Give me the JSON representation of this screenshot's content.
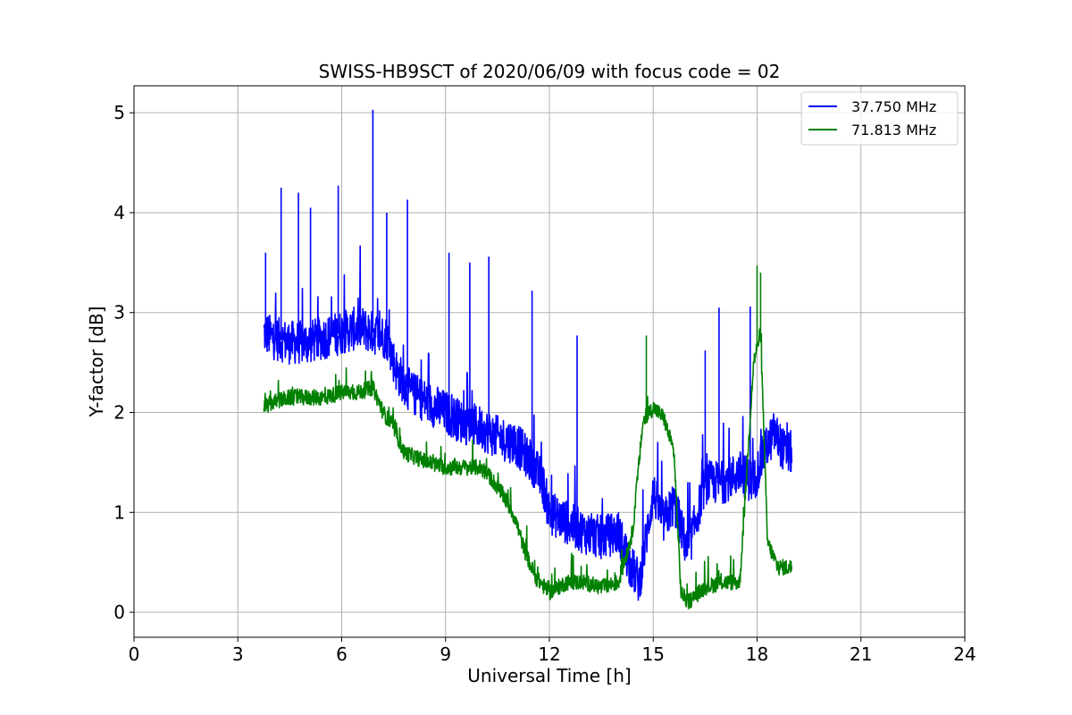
{
  "chart_data": {
    "type": "line",
    "title": "SWISS-HB9SCT of 2020/06/09 with focus code = 02",
    "xlabel": "Universal Time [h]",
    "ylabel": "Y-factor [dB]",
    "xlim": [
      0,
      24
    ],
    "ylim": [
      -0.25,
      5.27
    ],
    "xticks": [
      0,
      3,
      6,
      9,
      12,
      15,
      18,
      21,
      24
    ],
    "yticks": [
      0,
      1,
      2,
      3,
      4,
      5
    ],
    "grid": true,
    "legend_position": "top-right",
    "series": [
      {
        "name": "37.750 MHz",
        "color": "#0000ff",
        "x": [
          3.75,
          4.0,
          4.5,
          5.0,
          5.5,
          6.0,
          6.5,
          6.9,
          7.3,
          7.6,
          8.0,
          8.5,
          9.0,
          9.5,
          10.0,
          10.5,
          11.0,
          11.5,
          11.8,
          12.0,
          12.5,
          13.0,
          13.5,
          14.0,
          14.3,
          14.6,
          15.0,
          15.3,
          15.6,
          16.0,
          16.5,
          17.0,
          17.5,
          17.9,
          18.2,
          18.5,
          18.8,
          19.0
        ],
        "y": [
          2.8,
          2.75,
          2.7,
          2.7,
          2.75,
          2.8,
          2.85,
          2.8,
          2.75,
          2.4,
          2.2,
          2.1,
          2.0,
          1.9,
          1.85,
          1.75,
          1.7,
          1.5,
          1.3,
          1.0,
          0.9,
          0.8,
          0.75,
          0.8,
          0.5,
          0.3,
          1.2,
          0.9,
          1.1,
          0.6,
          1.3,
          1.3,
          1.4,
          1.3,
          1.6,
          1.8,
          1.6,
          1.6
        ],
        "peaks": [
          {
            "x": 3.8,
            "y": 3.6
          },
          {
            "x": 4.25,
            "y": 4.25
          },
          {
            "x": 4.75,
            "y": 4.2
          },
          {
            "x": 5.1,
            "y": 4.05
          },
          {
            "x": 5.9,
            "y": 4.27
          },
          {
            "x": 6.9,
            "y": 5.03
          },
          {
            "x": 7.3,
            "y": 4.0
          },
          {
            "x": 7.9,
            "y": 4.13
          },
          {
            "x": 9.1,
            "y": 3.6
          },
          {
            "x": 9.7,
            "y": 3.5
          },
          {
            "x": 10.25,
            "y": 3.56
          },
          {
            "x": 11.5,
            "y": 3.22
          },
          {
            "x": 12.8,
            "y": 2.77
          },
          {
            "x": 16.5,
            "y": 2.62
          },
          {
            "x": 16.9,
            "y": 3.05
          },
          {
            "x": 17.8,
            "y": 3.06
          }
        ]
      },
      {
        "name": "71.813 MHz",
        "color": "#008000",
        "x": [
          3.75,
          4.0,
          4.5,
          5.0,
          5.5,
          6.0,
          6.5,
          6.9,
          7.2,
          7.5,
          7.8,
          8.5,
          9.0,
          9.5,
          10.0,
          10.3,
          10.7,
          11.0,
          11.3,
          11.6,
          12.0,
          12.5,
          13.0,
          13.5,
          14.0,
          14.4,
          14.7,
          15.0,
          15.3,
          15.6,
          15.8,
          16.0,
          16.5,
          17.0,
          17.5,
          17.9,
          18.1,
          18.3,
          18.6,
          19.0
        ],
        "y": [
          2.05,
          2.1,
          2.15,
          2.15,
          2.15,
          2.2,
          2.2,
          2.25,
          2.0,
          1.85,
          1.6,
          1.5,
          1.45,
          1.45,
          1.45,
          1.35,
          1.15,
          0.95,
          0.6,
          0.35,
          0.2,
          0.3,
          0.3,
          0.25,
          0.3,
          0.8,
          1.9,
          2.05,
          1.95,
          1.6,
          0.2,
          0.1,
          0.25,
          0.3,
          0.3,
          2.5,
          2.8,
          0.7,
          0.45,
          0.45
        ],
        "peaks": [
          {
            "x": 14.8,
            "y": 2.77
          },
          {
            "x": 18.0,
            "y": 3.47
          },
          {
            "x": 18.1,
            "y": 3.4
          }
        ]
      }
    ]
  }
}
